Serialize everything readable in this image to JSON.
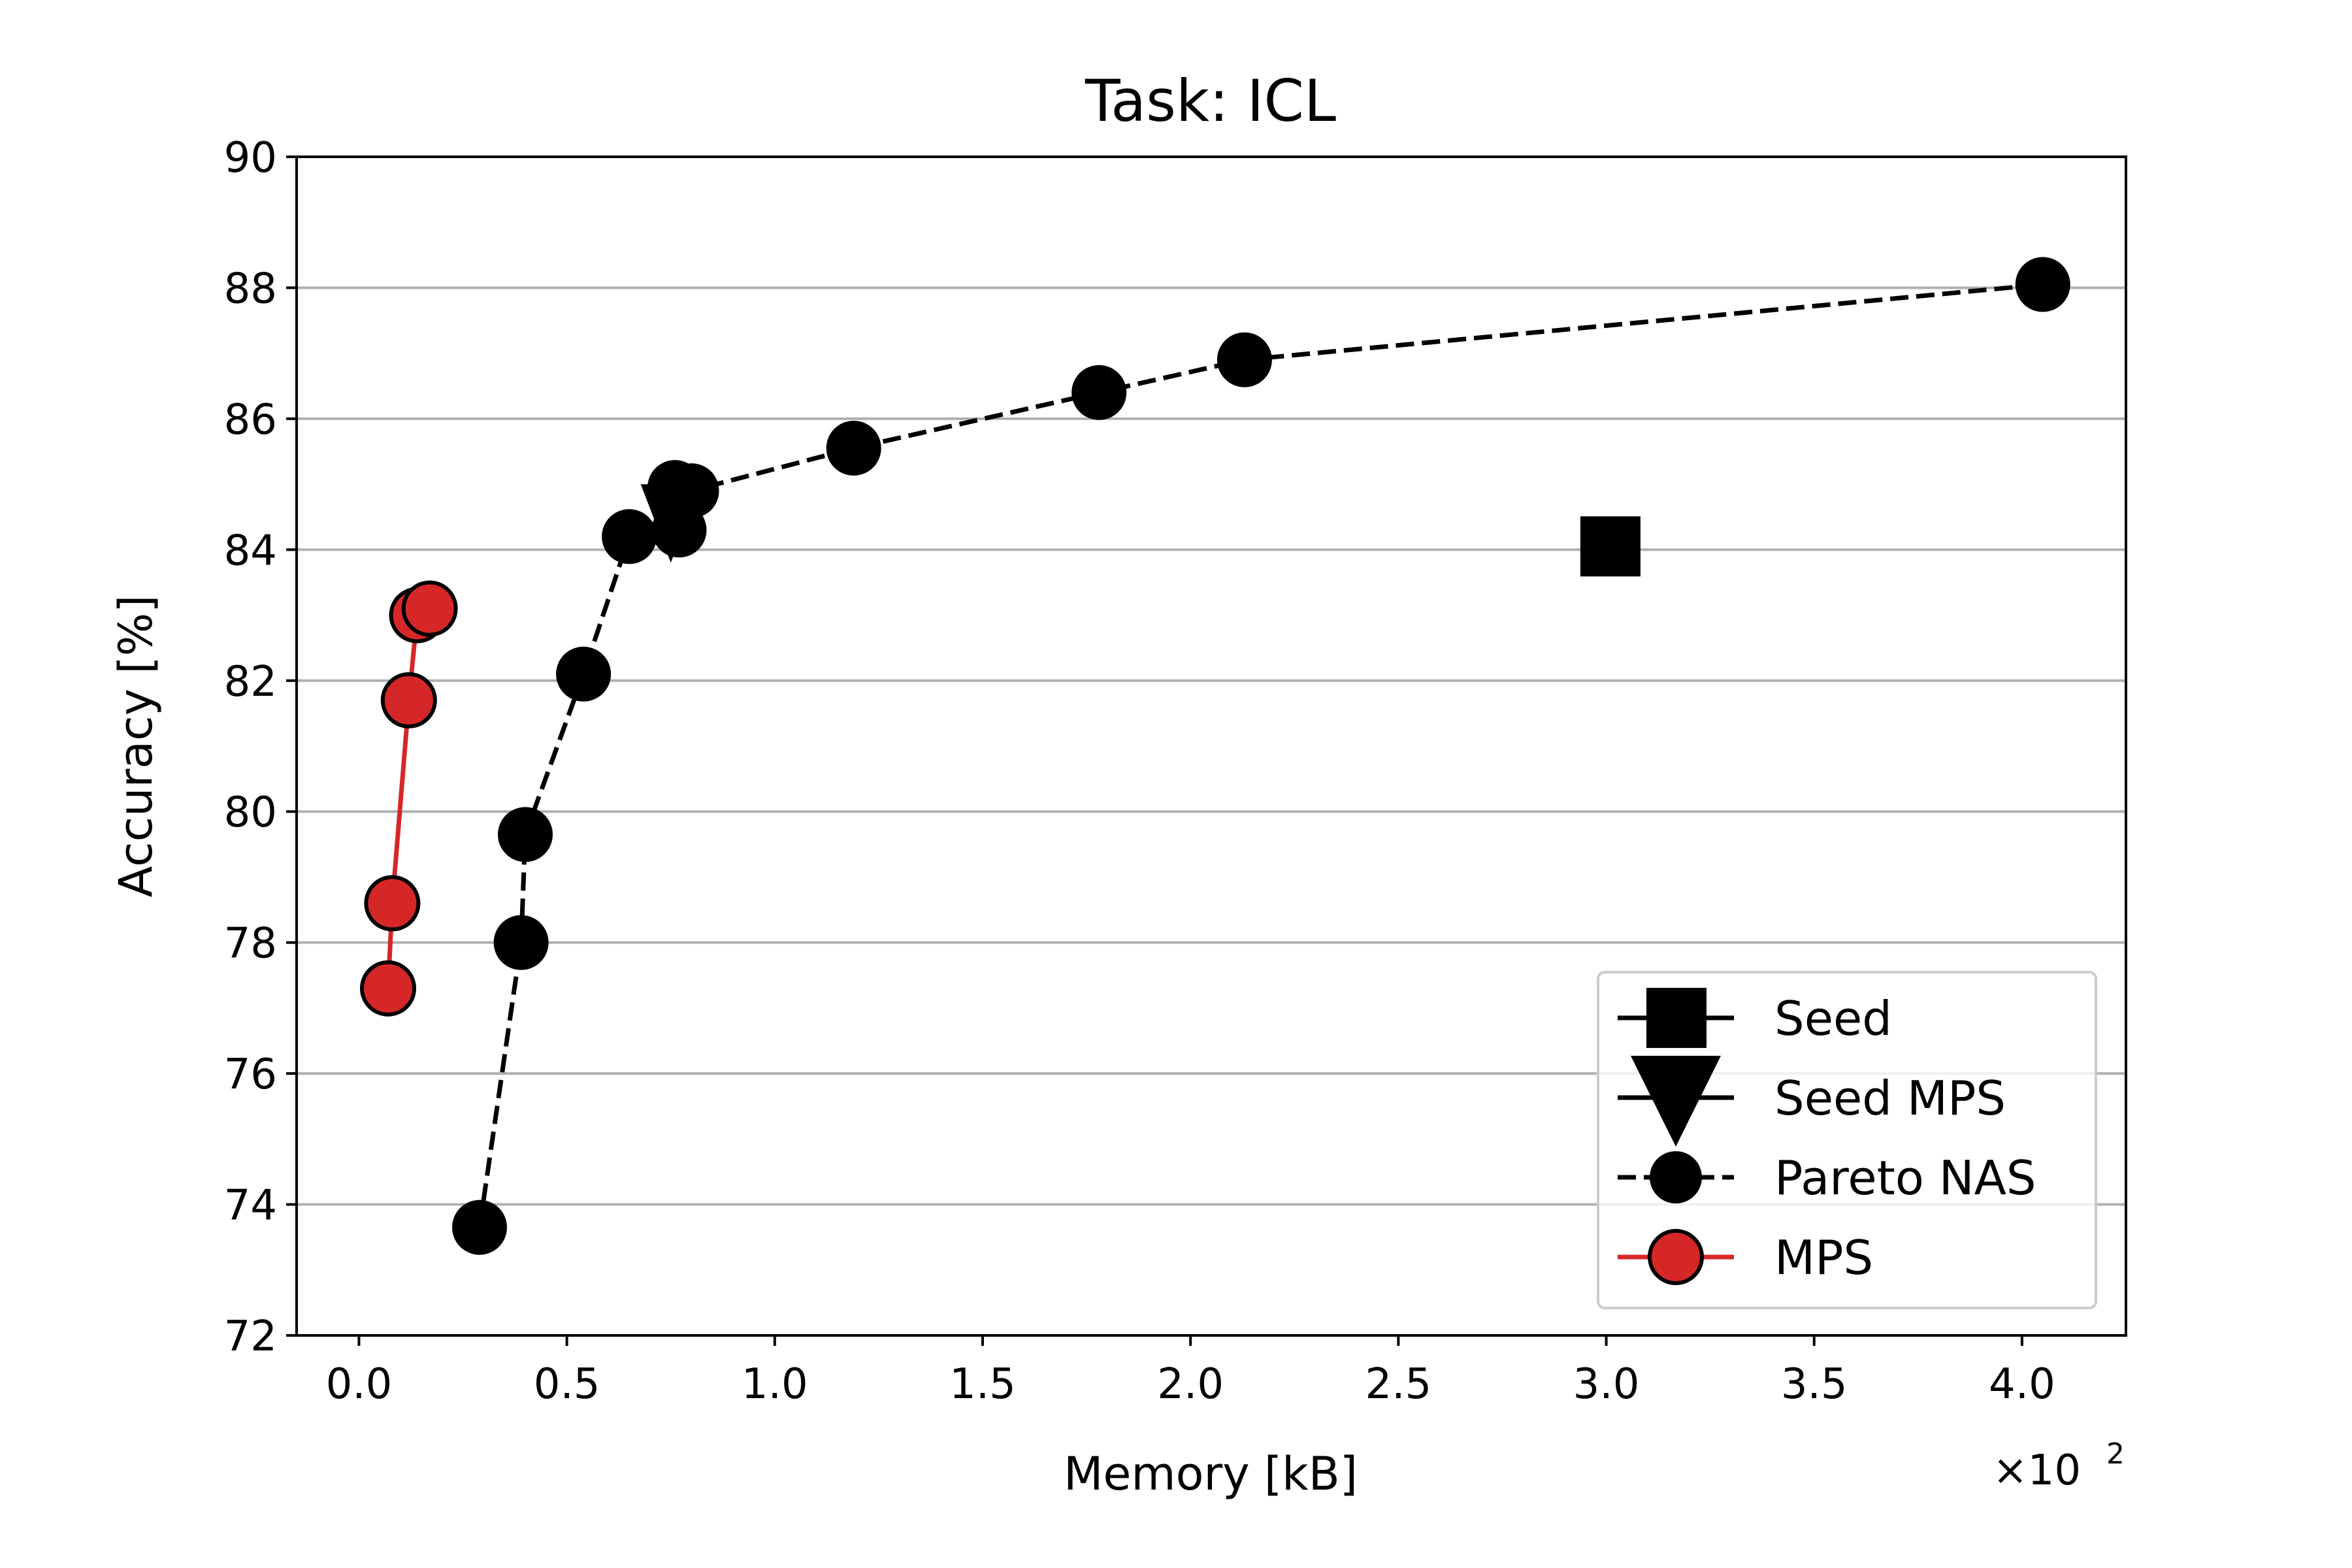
{
  "chart_data": {
    "type": "scatter",
    "title": "Task: ICL",
    "xlabel": "Memory [kB]",
    "ylabel": "Accuracy [%]",
    "x_offset_label": "×10",
    "x_offset_exponent": "2",
    "xlim": [
      -0.15,
      4.25
    ],
    "ylim": [
      72,
      90
    ],
    "x_ticks": [
      0.0,
      0.5,
      1.0,
      1.5,
      2.0,
      2.5,
      3.0,
      3.5,
      4.0
    ],
    "x_tick_labels": [
      "0.0",
      "0.5",
      "1.0",
      "1.5",
      "2.0",
      "2.5",
      "3.0",
      "3.5",
      "4.0"
    ],
    "y_ticks": [
      72,
      74,
      76,
      78,
      80,
      82,
      84,
      86,
      88,
      90
    ],
    "y_tick_labels": [
      "72",
      "74",
      "76",
      "78",
      "80",
      "82",
      "84",
      "86",
      "88",
      "90"
    ],
    "grid": "y",
    "legend_position": "lower-right",
    "colors": {
      "seed": "#000000",
      "seed_mps": "#000000",
      "pareto_nas": "#000000",
      "mps": "#d62728",
      "grid": "#b0b0b0"
    },
    "series": [
      {
        "name": "Seed",
        "marker": "square",
        "line": "none",
        "points": [
          [
            3.01,
            84.05
          ]
        ]
      },
      {
        "name": "Seed MPS",
        "marker": "triangle-down",
        "line": "none",
        "points": [
          [
            0.75,
            84.3
          ]
        ]
      },
      {
        "name": "Pareto NAS",
        "marker": "circle",
        "line": "dashed",
        "points": [
          [
            0.29,
            73.65
          ],
          [
            0.39,
            78.0
          ],
          [
            0.4,
            79.65
          ],
          [
            0.54,
            82.1
          ],
          [
            0.65,
            84.2
          ],
          [
            0.77,
            84.3
          ],
          [
            0.76,
            84.95
          ],
          [
            0.8,
            84.9
          ],
          [
            1.19,
            85.55
          ],
          [
            1.78,
            86.4
          ],
          [
            2.13,
            86.9
          ],
          [
            4.05,
            88.05
          ]
        ]
      },
      {
        "name": "MPS",
        "marker": "circle",
        "line": "solid",
        "points": [
          [
            0.07,
            77.3
          ],
          [
            0.08,
            78.6
          ],
          [
            0.12,
            81.7
          ],
          [
            0.14,
            83.0
          ],
          [
            0.17,
            83.1
          ]
        ]
      }
    ]
  }
}
